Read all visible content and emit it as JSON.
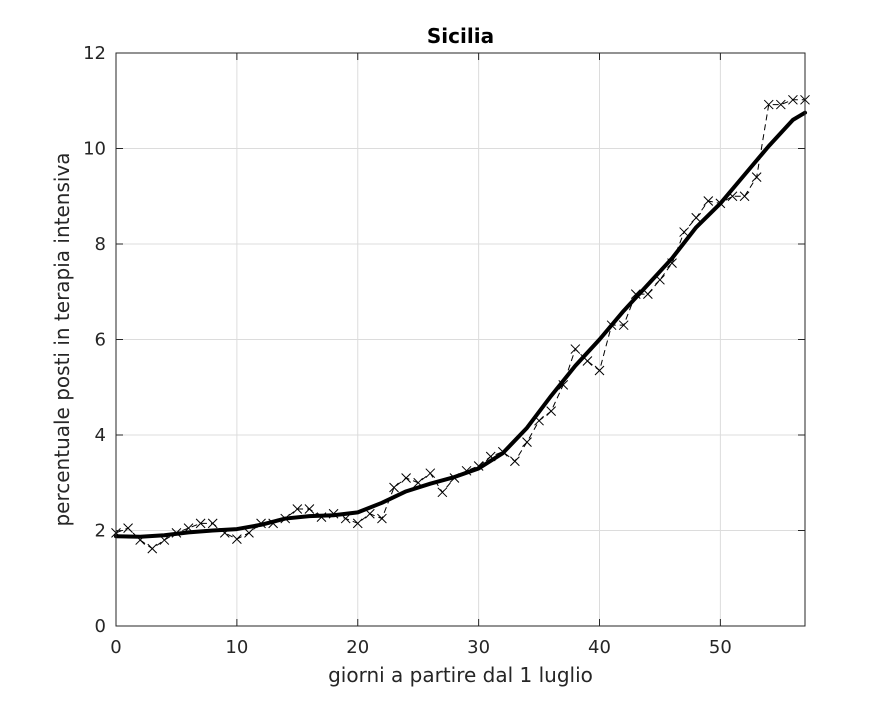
{
  "chart_data": {
    "type": "line",
    "title": "Sicilia",
    "xlabel": "giorni a partire dal 1 luglio",
    "ylabel": "percentuale posti in terapia intensiva",
    "xlim": [
      0,
      57
    ],
    "ylim": [
      0,
      12
    ],
    "xticks": [
      0,
      10,
      20,
      30,
      40,
      50
    ],
    "yticks": [
      0,
      2,
      4,
      6,
      8,
      10,
      12
    ],
    "grid": true,
    "series": [
      {
        "style": "markers-dashed",
        "color": "#000000",
        "x": [
          0,
          1,
          2,
          3,
          4,
          5,
          6,
          7,
          8,
          9,
          10,
          11,
          12,
          13,
          14,
          15,
          16,
          17,
          18,
          19,
          20,
          21,
          22,
          23,
          24,
          25,
          26,
          27,
          28,
          29,
          30,
          31,
          32,
          33,
          34,
          35,
          36,
          37,
          38,
          39,
          40,
          41,
          42,
          43,
          44,
          45,
          46,
          47,
          48,
          49,
          50,
          51,
          52,
          53,
          54,
          55,
          56,
          57
        ],
        "y": [
          1.95,
          2.05,
          1.8,
          1.62,
          1.8,
          1.95,
          2.05,
          2.15,
          2.15,
          1.95,
          1.82,
          1.95,
          2.15,
          2.15,
          2.25,
          2.45,
          2.45,
          2.28,
          2.35,
          2.25,
          2.15,
          2.35,
          2.25,
          2.9,
          3.1,
          3.0,
          3.2,
          2.8,
          3.1,
          3.25,
          3.35,
          3.55,
          3.65,
          3.45,
          3.85,
          4.3,
          4.5,
          5.05,
          5.8,
          5.55,
          5.35,
          6.3,
          6.3,
          6.95,
          6.95,
          7.25,
          7.6,
          8.25,
          8.55,
          8.9,
          8.85,
          9.0,
          9.0,
          9.4,
          10.92,
          10.92,
          11.02,
          11.02
        ]
      },
      {
        "style": "smooth-line",
        "color": "#000000",
        "x": [
          0,
          2,
          4,
          6,
          8,
          10,
          12,
          14,
          16,
          18,
          20,
          22,
          24,
          26,
          28,
          30,
          32,
          34,
          36,
          38,
          40,
          42,
          44,
          46,
          48,
          50,
          52,
          54,
          56,
          57
        ],
        "y": [
          1.88,
          1.87,
          1.9,
          1.96,
          2.0,
          2.03,
          2.12,
          2.25,
          2.3,
          2.32,
          2.38,
          2.58,
          2.82,
          2.98,
          3.12,
          3.3,
          3.62,
          4.15,
          4.82,
          5.45,
          6.0,
          6.6,
          7.15,
          7.7,
          8.35,
          8.85,
          9.45,
          10.05,
          10.6,
          10.75
        ]
      }
    ]
  }
}
